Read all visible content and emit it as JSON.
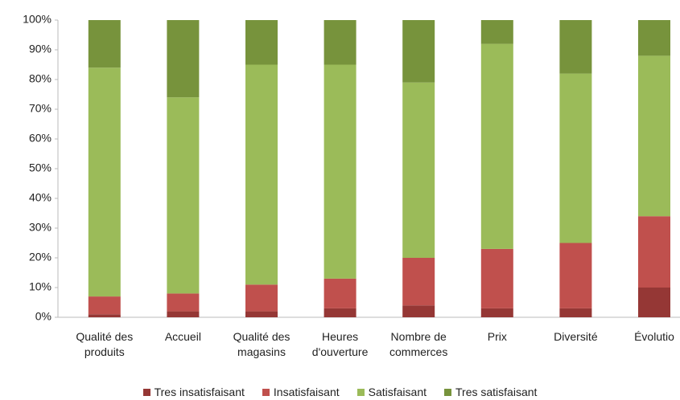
{
  "chart_data": {
    "type": "stacked_bar",
    "categories": [
      "Qualité des\nproduits",
      "Accueil",
      "Qualité des\nmagasins",
      "Heures\nd'ouverture",
      "Nombre de\ncommerces",
      "Prix",
      "Diversité",
      "Évolutio"
    ],
    "series": [
      {
        "name": "Tres insatisfaisant",
        "color": "#953735",
        "values": [
          1,
          2,
          2,
          3,
          4,
          3,
          3,
          10
        ]
      },
      {
        "name": "Insatisfaisant",
        "color": "#c0504d",
        "values": [
          6,
          6,
          9,
          10,
          16,
          20,
          22,
          24
        ]
      },
      {
        "name": "Satisfaisant",
        "color": "#9bbb59",
        "values": [
          77,
          66,
          74,
          72,
          59,
          69,
          57,
          54
        ]
      },
      {
        "name": "Tres satisfaisant",
        "color": "#77933c",
        "values": [
          16,
          26,
          15,
          15,
          21,
          8,
          18,
          12
        ]
      }
    ],
    "ylim": [
      0,
      100
    ],
    "yticks": [
      {
        "value": 0,
        "label": "0%"
      },
      {
        "value": 10,
        "label": "10%"
      },
      {
        "value": 20,
        "label": "20%"
      },
      {
        "value": 30,
        "label": "30%"
      },
      {
        "value": 40,
        "label": "40%"
      },
      {
        "value": 50,
        "label": "50%"
      },
      {
        "value": 60,
        "label": "60%"
      },
      {
        "value": 70,
        "label": "70%"
      },
      {
        "value": 80,
        "label": "80%"
      },
      {
        "value": 90,
        "label": "90%"
      },
      {
        "value": 100,
        "label": "100%"
      }
    ],
    "legend": "bottom"
  }
}
